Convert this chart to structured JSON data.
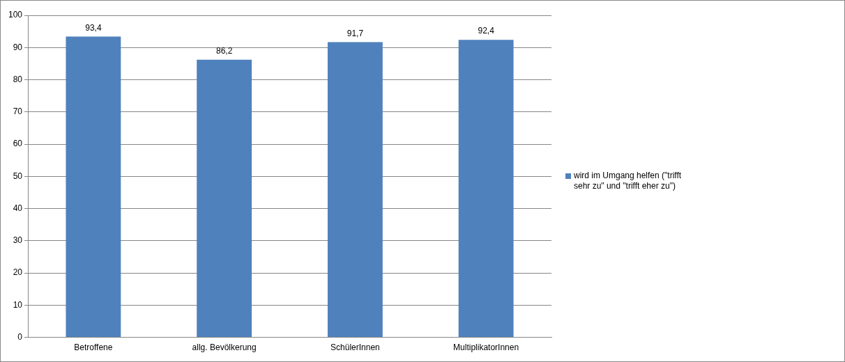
{
  "chart_data": {
    "type": "bar",
    "categories": [
      "Betroffene",
      "allg. Bevölkerung",
      "SchülerInnen",
      "MultiplikatorInnen"
    ],
    "series": [
      {
        "name": "wird im Umgang helfen (\"trifft sehr zu\" und \"trifft eher zu\")",
        "color": "#4f81bd",
        "values": [
          93.4,
          86.2,
          91.7,
          92.4
        ],
        "value_labels": [
          "93,4",
          "86,2",
          "91,7",
          "92,4"
        ]
      }
    ],
    "ylim": [
      0,
      100
    ],
    "yticks": [
      0,
      10,
      20,
      30,
      40,
      50,
      60,
      70,
      80,
      90,
      100
    ],
    "grid": "y",
    "legend": "right"
  }
}
